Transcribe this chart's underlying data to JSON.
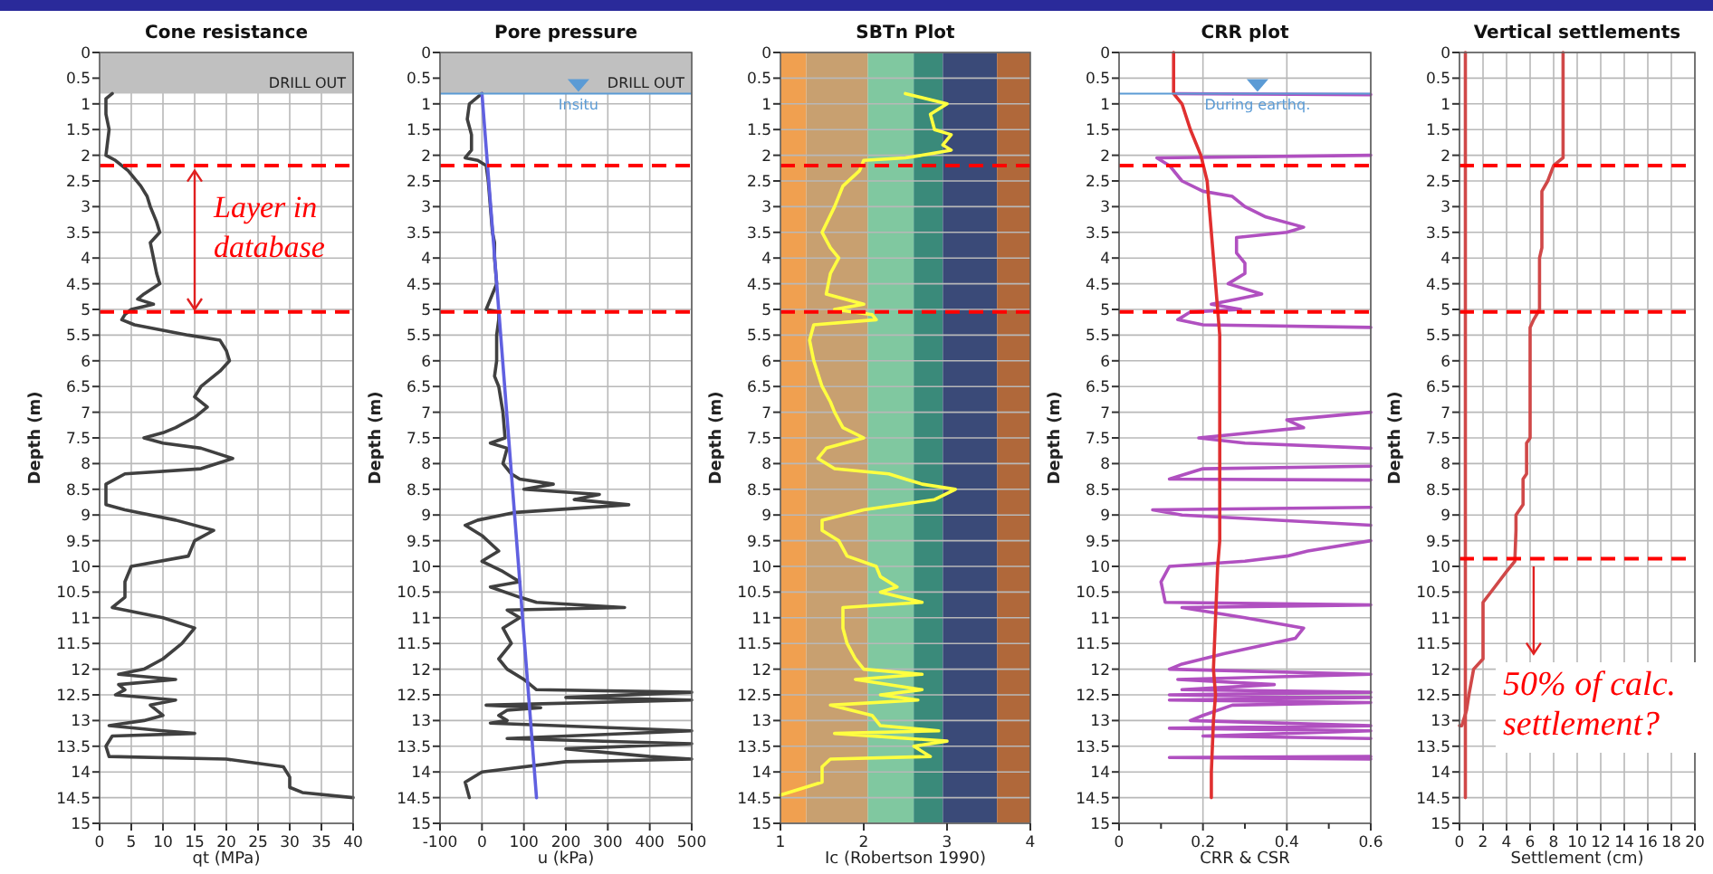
{
  "chart_data": [
    {
      "type": "line",
      "title": "Cone resistance",
      "xlabel": "qt (MPa)",
      "ylabel": "Depth (m)",
      "xlim": [
        0,
        40
      ],
      "xticks": [
        0,
        5,
        10,
        15,
        20,
        25,
        30,
        35,
        40
      ],
      "ylim": [
        15,
        0
      ],
      "yticks": [
        0,
        0.5,
        1,
        1.5,
        2,
        2.5,
        3,
        3.5,
        4,
        4.5,
        5,
        5.5,
        6,
        6.5,
        7,
        7.5,
        8,
        8.5,
        9,
        9.5,
        10,
        10.5,
        11,
        11.5,
        12,
        12.5,
        13,
        13.5,
        14,
        14.5,
        15
      ],
      "grid": true,
      "series": [
        {
          "color": "#404040",
          "x": [
            2,
            1,
            1,
            1.5,
            1.2,
            1,
            2.5,
            4.5,
            6.5,
            7.5,
            8,
            9,
            9.5,
            8,
            8.5,
            9,
            9.5,
            7,
            6,
            8.5,
            5,
            4,
            3.5,
            5.5,
            14,
            19,
            20,
            20.5,
            19,
            16,
            15,
            17,
            15,
            12,
            10,
            7,
            10,
            16,
            21,
            16,
            4,
            1,
            1,
            4,
            12,
            18,
            15,
            14,
            5,
            4,
            4,
            2,
            10,
            15,
            13,
            10,
            7,
            3,
            12,
            3,
            4,
            2.5,
            12,
            8,
            10,
            7,
            1.5,
            10,
            15,
            2,
            1,
            1.5,
            20,
            29,
            30,
            30,
            32,
            40
          ],
          "values": [
            0.8,
            0.9,
            1.2,
            1.5,
            1.8,
            2,
            2.1,
            2.3,
            2.6,
            2.8,
            3,
            3.3,
            3.5,
            3.7,
            4,
            4.3,
            4.5,
            4.7,
            4.8,
            4.9,
            5,
            5.1,
            5.2,
            5.3,
            5.5,
            5.6,
            5.8,
            6,
            6.2,
            6.5,
            6.7,
            6.9,
            7.1,
            7.3,
            7.4,
            7.5,
            7.6,
            7.7,
            7.9,
            8.1,
            8.2,
            8.4,
            8.8,
            8.9,
            9.1,
            9.3,
            9.5,
            9.8,
            10,
            10.3,
            10.6,
            10.8,
            11,
            11.2,
            11.5,
            11.8,
            12,
            12.1,
            12.2,
            12.3,
            12.4,
            12.5,
            12.6,
            12.7,
            12.9,
            13,
            13.1,
            13.2,
            13.25,
            13.3,
            13.5,
            13.7,
            13.75,
            13.9,
            14.1,
            14.3,
            14.4,
            14.5
          ]
        }
      ],
      "bands": [
        {
          "axis": "y",
          "from": 0,
          "to": 0.8,
          "label": "DRILL OUT",
          "color": "#c0c0c0"
        }
      ],
      "ref_lines": [
        {
          "axis": "y",
          "value": 2.2,
          "color": "#ff0000",
          "line_style": "dashed"
        },
        {
          "axis": "y",
          "value": 5.05,
          "color": "#ff0000",
          "line_style": "dashed"
        }
      ],
      "annotations": [
        "Layer in database"
      ]
    },
    {
      "type": "line",
      "title": "Pore pressure",
      "xlabel": "u (kPa)",
      "ylabel": "Depth (m)",
      "xlim": [
        -100,
        500
      ],
      "xticks": [
        -100,
        0,
        100,
        200,
        300,
        400,
        500
      ],
      "ylim": [
        15,
        0
      ],
      "yticks": [
        0,
        0.5,
        1,
        1.5,
        2,
        2.5,
        3,
        3.5,
        4,
        4.5,
        5,
        5.5,
        6,
        6.5,
        7,
        7.5,
        8,
        8.5,
        9,
        9.5,
        10,
        10.5,
        11,
        11.5,
        12,
        12.5,
        13,
        13.5,
        14,
        14.5,
        15
      ],
      "grid": true,
      "series": [
        {
          "color": "#404040",
          "x": [
            0,
            -30,
            -35,
            -25,
            -25,
            -40,
            -10,
            10,
            15,
            20,
            25,
            30,
            30,
            35,
            10,
            40,
            40,
            35,
            35,
            30,
            40,
            50,
            55,
            20,
            60,
            50,
            70,
            90,
            170,
            100,
            280,
            220,
            350,
            80,
            -10,
            -40,
            0,
            40,
            0,
            50,
            90,
            20,
            90,
            130,
            340,
            60,
            90,
            50,
            70,
            40,
            60,
            100,
            130,
            500,
            200,
            500,
            10,
            140,
            60,
            40,
            60,
            20,
            500,
            60,
            500,
            200,
            400,
            500,
            200,
            0,
            -40,
            -30
          ],
          "values": [
            0.8,
            1,
            1.3,
            1.6,
            1.9,
            2.05,
            2.1,
            2.2,
            2.5,
            3,
            3.5,
            3.7,
            4,
            4.5,
            5,
            5.05,
            5.2,
            5.5,
            6,
            6.3,
            6.5,
            7,
            7.5,
            7.6,
            7.7,
            8,
            8.2,
            8.3,
            8.4,
            8.5,
            8.6,
            8.7,
            8.8,
            8.95,
            9.1,
            9.2,
            9.4,
            9.7,
            9.9,
            10.1,
            10.3,
            10.4,
            10.6,
            10.7,
            10.8,
            10.85,
            11,
            11.2,
            11.5,
            11.8,
            12,
            12.2,
            12.4,
            12.45,
            12.55,
            12.6,
            12.7,
            12.75,
            12.8,
            12.9,
            13,
            13.05,
            13.2,
            13.35,
            13.45,
            13.55,
            13.7,
            13.75,
            13.8,
            14,
            14.2,
            14.5
          ]
        },
        {
          "color": "#6060e0",
          "x": [
            0,
            130
          ],
          "values": [
            0.8,
            14.5
          ]
        }
      ],
      "bands": [
        {
          "axis": "y",
          "from": 0,
          "to": 0.8,
          "label": "DRILL OUT",
          "color": "#c0c0c0"
        }
      ],
      "ref_lines": [
        {
          "axis": "y",
          "value": 0.8,
          "label": "Insitu",
          "color": "#5b9bd5",
          "line_style": "solid"
        },
        {
          "axis": "y",
          "value": 2.2,
          "color": "#ff0000",
          "line_style": "dashed"
        },
        {
          "axis": "y",
          "value": 5.05,
          "color": "#ff0000",
          "line_style": "dashed"
        }
      ]
    },
    {
      "type": "line",
      "title": "SBTn Plot",
      "xlabel": "Ic (Robertson 1990)",
      "ylabel": "Depth (m)",
      "xlim": [
        1,
        4
      ],
      "xticks": [
        1,
        2,
        3,
        4
      ],
      "ylim": [
        15,
        0
      ],
      "yticks": [
        0,
        0.5,
        1,
        1.5,
        2,
        2.5,
        3,
        3.5,
        4,
        4.5,
        5,
        5.5,
        6,
        6.5,
        7,
        7.5,
        8,
        8.5,
        9,
        9.5,
        10,
        10.5,
        11,
        11.5,
        12,
        12.5,
        13,
        13.5,
        14,
        14.5,
        15
      ],
      "grid": "y",
      "series": [
        {
          "color": "#ffff40",
          "x": [
            2.5,
            3,
            2.8,
            2.85,
            3.05,
            2.95,
            3.05,
            2.7,
            2.5,
            2,
            1.95,
            1.75,
            1.65,
            1.5,
            1.6,
            1.7,
            1.6,
            1.55,
            2,
            1.65,
            2.1,
            2.15,
            1.4,
            1.35,
            1.4,
            1.5,
            1.6,
            1.65,
            1.75,
            2,
            1.55,
            1.45,
            1.65,
            2.3,
            2.5,
            2.7,
            3.1,
            2.85,
            2,
            1.5,
            1.5,
            1.7,
            1.8,
            2.15,
            2.2,
            2.4,
            2.2,
            2.7,
            1.75,
            1.75,
            1.8,
            1.9,
            2,
            2.7,
            1.9,
            2.7,
            2.2,
            2.65,
            1.6,
            2.1,
            2.2,
            2.9,
            1.65,
            3,
            2.6,
            2.8,
            1.6,
            1.5,
            1.5,
            1
          ],
          "values": [
            0.8,
            1,
            1.2,
            1.5,
            1.6,
            1.8,
            1.9,
            2,
            2.05,
            2.1,
            2.3,
            2.6,
            3,
            3.5,
            3.8,
            4,
            4.3,
            4.7,
            4.9,
            5,
            5.1,
            5.2,
            5.3,
            5.6,
            6,
            6.5,
            6.8,
            7,
            7.3,
            7.5,
            7.7,
            7.9,
            8.1,
            8.2,
            8.3,
            8.4,
            8.5,
            8.7,
            8.9,
            9.1,
            9.3,
            9.5,
            9.8,
            10,
            10.2,
            10.4,
            10.5,
            10.7,
            10.8,
            11.2,
            11.5,
            11.8,
            12,
            12.1,
            12.2,
            12.4,
            12.5,
            12.6,
            12.7,
            12.9,
            13.1,
            13.2,
            13.25,
            13.4,
            13.5,
            13.7,
            13.75,
            13.9,
            14.2,
            14.45
          ]
        }
      ],
      "bands": [
        {
          "axis": "x",
          "from": 1,
          "to": 1.31,
          "color": "#f0a050"
        },
        {
          "axis": "x",
          "from": 1.31,
          "to": 2.05,
          "color": "#c8a070"
        },
        {
          "axis": "x",
          "from": 2.05,
          "to": 2.6,
          "color": "#80c8a0"
        },
        {
          "axis": "x",
          "from": 2.6,
          "to": 2.95,
          "color": "#3a8a7a"
        },
        {
          "axis": "x",
          "from": 2.95,
          "to": 3.6,
          "color": "#3a4a78"
        },
        {
          "axis": "x",
          "from": 3.6,
          "to": 4,
          "color": "#b0683a"
        }
      ],
      "ref_lines": [
        {
          "axis": "y",
          "value": 2.2,
          "color": "#ff0000",
          "line_style": "dashed"
        },
        {
          "axis": "y",
          "value": 5.05,
          "color": "#ff0000",
          "line_style": "dashed"
        }
      ]
    },
    {
      "type": "line",
      "title": "CRR plot",
      "xlabel": "CRR & CSR",
      "ylabel": "Depth (m)",
      "xlim": [
        0,
        0.6
      ],
      "xticks": [
        0,
        {
          "value": 0.1,
          "label": null
        },
        0.2,
        {
          "value": 0.3,
          "label": null
        },
        0.4,
        {
          "value": 0.5,
          "label": null
        },
        0.6
      ],
      "ylim": [
        15,
        0
      ],
      "yticks": [
        0,
        0.5,
        1,
        1.5,
        2,
        2.5,
        3,
        3.5,
        4,
        4.5,
        5,
        5.5,
        6,
        6.5,
        7,
        7.5,
        8,
        8.5,
        9,
        9.5,
        10,
        10.5,
        11,
        11.5,
        12,
        12.5,
        13,
        13.5,
        14,
        14.5,
        15
      ],
      "grid": true,
      "series": [
        {
          "color": "#b050c0",
          "x": [
            0.13,
            0.6
          ],
          "values": [
            0.8,
            0.82
          ]
        },
        {
          "color": "#b050c0",
          "x": [
            0.6,
            0.09,
            0.12,
            0.15,
            0.2,
            0.27,
            0.3,
            0.35,
            0.44,
            0.4,
            0.28,
            0.28,
            0.3,
            0.3,
            0.26,
            0.34,
            0.28,
            0.22,
            0.29,
            0.17,
            0.14,
            0.2,
            0.6
          ],
          "values": [
            2,
            2.05,
            2.2,
            2.5,
            2.7,
            2.8,
            3,
            3.2,
            3.4,
            3.5,
            3.6,
            3.9,
            4.1,
            4.3,
            4.5,
            4.7,
            4.8,
            4.9,
            5,
            5.05,
            5.2,
            5.3,
            5.35
          ]
        },
        {
          "color": "#b050c0",
          "x": [
            0.6,
            0.4,
            0.44,
            0.19,
            0.3,
            0.6
          ],
          "values": [
            7,
            7.15,
            7.3,
            7.5,
            7.6,
            7.7
          ]
        },
        {
          "color": "#b050c0",
          "x": [
            0.6,
            0.2,
            0.12,
            0.6
          ],
          "values": [
            8.05,
            8.1,
            8.3,
            8.32
          ]
        },
        {
          "color": "#b050c0",
          "x": [
            0.6,
            0.08,
            0.15,
            0.6
          ],
          "values": [
            8.85,
            8.9,
            9,
            9.2
          ]
        },
        {
          "color": "#b050c0",
          "x": [
            0.6,
            0.45,
            0.4,
            0.3,
            0.12,
            0.1,
            0.11,
            0.6,
            0.15,
            0.3,
            0.44,
            0.42,
            0.25,
            0.15,
            0.12,
            0.6,
            0.14,
            0.37,
            0.15,
            0.6,
            0.12,
            0.6,
            0.12,
            0.6,
            0.27,
            0.2,
            0.17,
            0.6,
            0.12,
            0.6,
            0.2,
            0.6
          ],
          "values": [
            9.5,
            9.7,
            9.8,
            9.9,
            10,
            10.3,
            10.7,
            10.75,
            10.8,
            11,
            11.2,
            11.4,
            11.7,
            11.9,
            12,
            12.1,
            12.2,
            12.3,
            12.4,
            12.45,
            12.5,
            12.55,
            12.6,
            12.65,
            12.7,
            12.9,
            13,
            13.1,
            13.15,
            13.2,
            13.3,
            13.35
          ]
        },
        {
          "color": "#b050c0",
          "x": [
            0.6,
            0.12,
            0.6
          ],
          "values": [
            13.7,
            13.72,
            13.75
          ]
        },
        {
          "color": "#e03030",
          "x": [
            0.13,
            0.13,
            0.15,
            0.17,
            0.195,
            0.21,
            0.215,
            0.225,
            0.235,
            0.24,
            0.24,
            0.24,
            0.235,
            0.23,
            0.225,
            0.23,
            0.225,
            0.22,
            0.22
          ],
          "values": [
            0,
            0.8,
            1,
            1.5,
            2,
            2.5,
            3,
            4,
            5,
            5.5,
            7,
            9.5,
            10,
            11,
            12,
            12.5,
            13,
            14,
            14.5
          ]
        }
      ],
      "ref_lines": [
        {
          "axis": "y",
          "value": 0.8,
          "label": "During earthq.",
          "color": "#5b9bd5",
          "line_style": "solid"
        },
        {
          "axis": "y",
          "value": 2.2,
          "color": "#ff0000",
          "line_style": "dashed"
        },
        {
          "axis": "y",
          "value": 5.05,
          "color": "#ff0000",
          "line_style": "dashed"
        }
      ]
    },
    {
      "type": "line",
      "title": "Vertical settlements",
      "xlabel": "Settlement (cm)",
      "ylabel": "Depth (m)",
      "xlim": [
        0,
        20
      ],
      "xticks": [
        0,
        2,
        4,
        6,
        8,
        10,
        12,
        14,
        16,
        18,
        20
      ],
      "ylim": [
        15,
        0
      ],
      "yticks": [
        0,
        0.5,
        1,
        1.5,
        2,
        2.5,
        3,
        3.5,
        4,
        4.5,
        5,
        5.5,
        6,
        6.5,
        7,
        7.5,
        8,
        8.5,
        9,
        9.5,
        10,
        10.5,
        11,
        11.5,
        12,
        12.5,
        13,
        13.5,
        14,
        14.5,
        15
      ],
      "grid": true,
      "series": [
        {
          "color": "#d04848",
          "x": [
            8.8,
            8.8,
            8,
            7.5,
            7,
            7,
            6.8,
            6.8,
            6.3,
            6,
            6,
            5.7,
            5.7,
            5.4,
            5.4,
            4.8,
            4.8,
            4.7,
            4,
            3,
            2,
            2,
            2,
            1.2,
            0.8,
            0.6,
            0.2,
            0
          ],
          "values": [
            0,
            2.05,
            2.2,
            2.5,
            2.7,
            3.8,
            4,
            5,
            5.2,
            5.35,
            7.5,
            7.6,
            8.2,
            8.3,
            8.8,
            9,
            9.3,
            9.9,
            10.1,
            10.4,
            10.7,
            10.9,
            11.8,
            12,
            12.5,
            12.8,
            13.1,
            13.1
          ]
        },
        {
          "color": "#d04848",
          "x": [
            0.5,
            0.5
          ],
          "values": [
            0,
            14.5
          ]
        }
      ],
      "ref_lines": [
        {
          "axis": "y",
          "value": 2.2,
          "color": "#ff0000",
          "line_style": "dashed"
        },
        {
          "axis": "y",
          "value": 5.05,
          "color": "#ff0000",
          "line_style": "dashed"
        },
        {
          "axis": "y",
          "value": 9.85,
          "color": "#ff0000",
          "line_style": "dashed"
        }
      ],
      "annotations": [
        "50% of calc. settlement?"
      ]
    }
  ]
}
